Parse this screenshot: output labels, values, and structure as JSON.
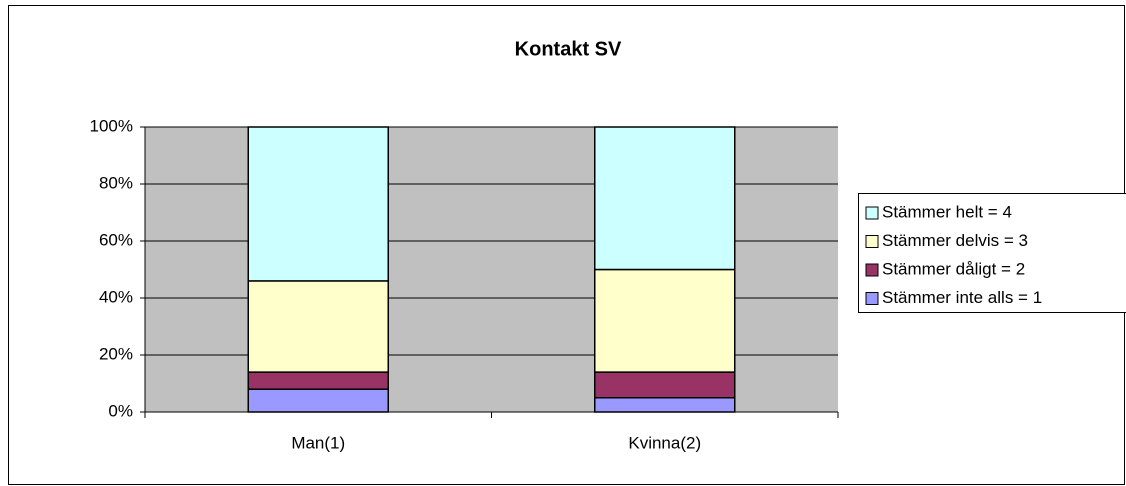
{
  "chart_data": {
    "type": "stacked_bar_100",
    "title": "Kontakt SV",
    "categories": [
      "Man(1)",
      "Kvinna(2)"
    ],
    "series": [
      {
        "name": "Stämmer inte alls = 1",
        "color": "#9999ff",
        "values": [
          8,
          5
        ]
      },
      {
        "name": "Stämmer dåligt = 2",
        "color": "#993366",
        "values": [
          6,
          9
        ]
      },
      {
        "name": "Stämmer delvis = 3",
        "color": "#ffffcc",
        "values": [
          32,
          36
        ]
      },
      {
        "name": "Stämmer helt = 4",
        "color": "#ccffff",
        "values": [
          54,
          50
        ]
      }
    ],
    "ylim": [
      0,
      100
    ],
    "yticks": [
      {
        "value": 0,
        "label": "0%"
      },
      {
        "value": 20,
        "label": "20%"
      },
      {
        "value": 40,
        "label": "40%"
      },
      {
        "value": 60,
        "label": "60%"
      },
      {
        "value": 80,
        "label": "80%"
      },
      {
        "value": 100,
        "label": "100%"
      }
    ],
    "grid": true,
    "legend": "right"
  }
}
